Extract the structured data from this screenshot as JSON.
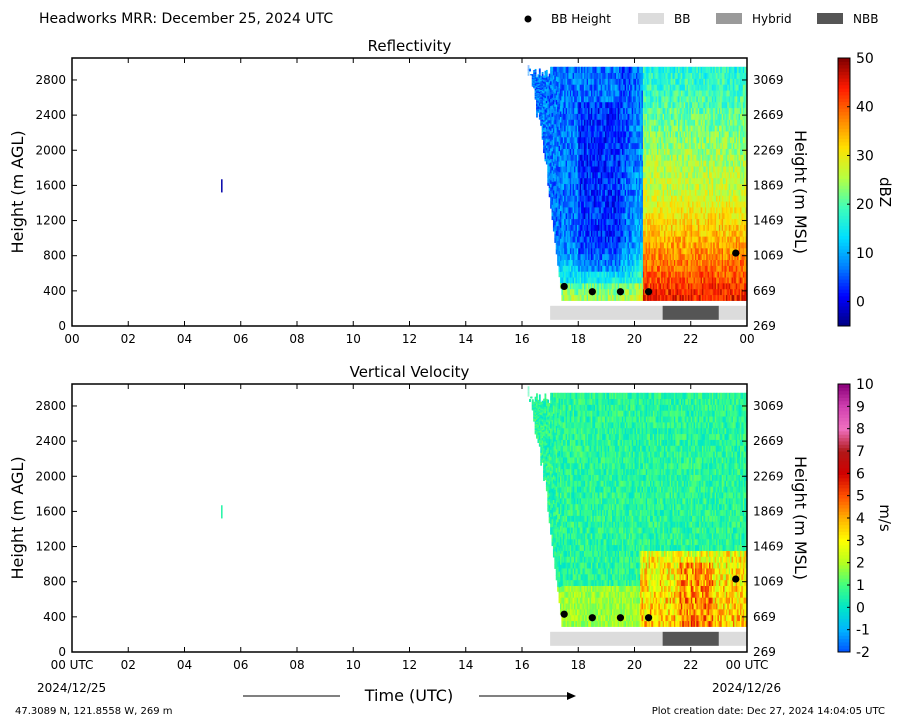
{
  "header": {
    "title": "Headworks MRR:  December 25, 2024 UTC",
    "legend": [
      {
        "label": "BB Height",
        "kind": "dot",
        "color": "#000000"
      },
      {
        "label": "BB",
        "kind": "swatch",
        "color": "#dcdcdc"
      },
      {
        "label": "Hybrid",
        "kind": "swatch",
        "color": "#9a9a9a"
      },
      {
        "label": "NBB",
        "kind": "swatch",
        "color": "#555555"
      }
    ]
  },
  "footer": {
    "location": "47.3089 N, 121.8558 W, 269 m",
    "creation": "Plot creation date: Dec 27, 2024 14:04:05 UTC",
    "xlabel": "Time (UTC)",
    "start_date": "2024/12/25",
    "end_date": "2024/12/26"
  },
  "chart_data": [
    {
      "type": "heatmap",
      "title": "Reflectivity",
      "ylabel": "Height (m AGL)",
      "ylabel_right": "Height (m MSL)",
      "colorbar_label": "dBZ",
      "xlim": [
        0,
        24
      ],
      "ylim": [
        0,
        3050
      ],
      "x_ticks": [
        "00",
        "02",
        "04",
        "06",
        "08",
        "10",
        "12",
        "14",
        "16",
        "18",
        "20",
        "22",
        "00"
      ],
      "y_ticks": [
        0,
        400,
        800,
        1200,
        1600,
        2000,
        2400,
        2800
      ],
      "y_ticks_right": [
        269,
        669,
        1069,
        1469,
        1869,
        2269,
        2669,
        3069
      ],
      "colorbar_range": [
        -5,
        50
      ],
      "colorbar_ticks": [
        0,
        10,
        20,
        30,
        40,
        50
      ],
      "colorbar_colors": [
        "#00007f",
        "#0000ff",
        "#0080ff",
        "#00e0ff",
        "#40ffb8",
        "#b8ff40",
        "#ffe000",
        "#ff8000",
        "#ff1a00",
        "#7f0000"
      ],
      "echo_start": 16.2,
      "echo_end": 24,
      "top": 2950,
      "isolated_echo": {
        "time": 5.3,
        "bottom": 1520,
        "top": 1670,
        "value": -3
      },
      "bb_height": [
        {
          "time": 17.5,
          "height": 450
        },
        {
          "time": 18.5,
          "height": 390
        },
        {
          "time": 19.5,
          "height": 390
        },
        {
          "time": 20.5,
          "height": 390
        },
        {
          "time": 23.6,
          "height": 830
        }
      ],
      "bb_type": [
        {
          "start": 17.0,
          "end": 21.0,
          "type": "BB"
        },
        {
          "start": 21.0,
          "end": 23.0,
          "type": "NBB"
        },
        {
          "start": 23.0,
          "end": 24.0,
          "type": "BB"
        }
      ]
    },
    {
      "type": "heatmap",
      "title": "Vertical Velocity",
      "ylabel": "Height (m AGL)",
      "ylabel_right": "Height (m MSL)",
      "colorbar_label": "m/s",
      "xlim": [
        0,
        24
      ],
      "ylim": [
        0,
        3050
      ],
      "x_ticks": [
        "00 UTC",
        "02",
        "04",
        "06",
        "08",
        "10",
        "12",
        "14",
        "16",
        "18",
        "20",
        "22",
        "00 UTC"
      ],
      "y_ticks": [
        0,
        400,
        800,
        1200,
        1600,
        2000,
        2400,
        2800
      ],
      "y_ticks_right": [
        269,
        669,
        1069,
        1469,
        1869,
        2269,
        2669,
        3069
      ],
      "colorbar_range": [
        -2,
        10
      ],
      "colorbar_ticks": [
        -2,
        -1,
        0,
        1,
        2,
        3,
        4,
        5,
        6,
        7,
        8,
        9,
        10
      ],
      "colorbar_colors": [
        "#0050ff",
        "#00b4ff",
        "#00e6c8",
        "#40ff80",
        "#b4ff20",
        "#ffff00",
        "#ffb000",
        "#ff5000",
        "#d00000",
        "#b01818",
        "#f070c0",
        "#d040b0",
        "#8a007a"
      ],
      "echo_start": 16.2,
      "echo_end": 24,
      "top": 2950,
      "isolated_echo": {
        "time": 5.3,
        "bottom": 1520,
        "top": 1670,
        "value": 0.5
      },
      "bb_height": [
        {
          "time": 17.5,
          "height": 430
        },
        {
          "time": 18.5,
          "height": 390
        },
        {
          "time": 19.5,
          "height": 390
        },
        {
          "time": 20.5,
          "height": 390
        },
        {
          "time": 23.6,
          "height": 830
        }
      ],
      "bb_type": [
        {
          "start": 17.0,
          "end": 21.0,
          "type": "BB"
        },
        {
          "start": 21.0,
          "end": 23.0,
          "type": "NBB"
        },
        {
          "start": 23.0,
          "end": 24.0,
          "type": "BB"
        }
      ]
    }
  ]
}
